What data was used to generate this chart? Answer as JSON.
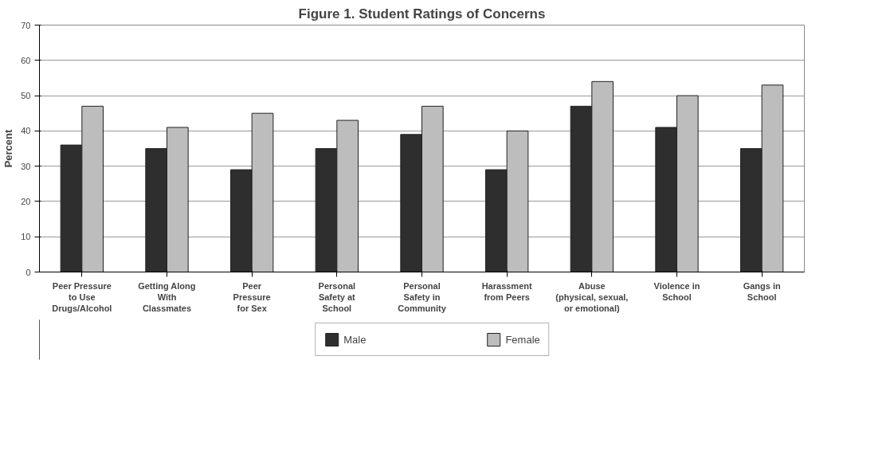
{
  "chart_data": {
    "type": "bar",
    "title": "Figure 1. Student Ratings of Concerns",
    "ylabel": "Percent",
    "categories": [
      "Peer Pressure\nto Use\nDrugs/Alcohol",
      "Getting Along\nWith\nClassmates",
      "Peer\nPressure\nfor Sex",
      "Personal\nSafety at\nSchool",
      "Personal\nSafety in\nCommunity",
      "Harassment\nfrom Peers",
      "Abuse\n(physical, sexual,\nor emotional)",
      "Violence in\nSchool",
      "Gangs in\nSchool"
    ],
    "series": [
      {
        "name": "Male",
        "color": "#2e2e2e",
        "values": [
          36,
          35,
          29,
          35,
          39,
          29,
          47,
          41,
          35
        ]
      },
      {
        "name": "Female",
        "color": "#bdbdbd",
        "values": [
          47,
          41,
          45,
          43,
          47,
          40,
          54,
          50,
          53
        ]
      }
    ],
    "ylim": [
      0,
      70
    ],
    "yticks": [
      0,
      10,
      20,
      30,
      40,
      50,
      60,
      70
    ],
    "grid": "y",
    "legend": "bottom"
  }
}
